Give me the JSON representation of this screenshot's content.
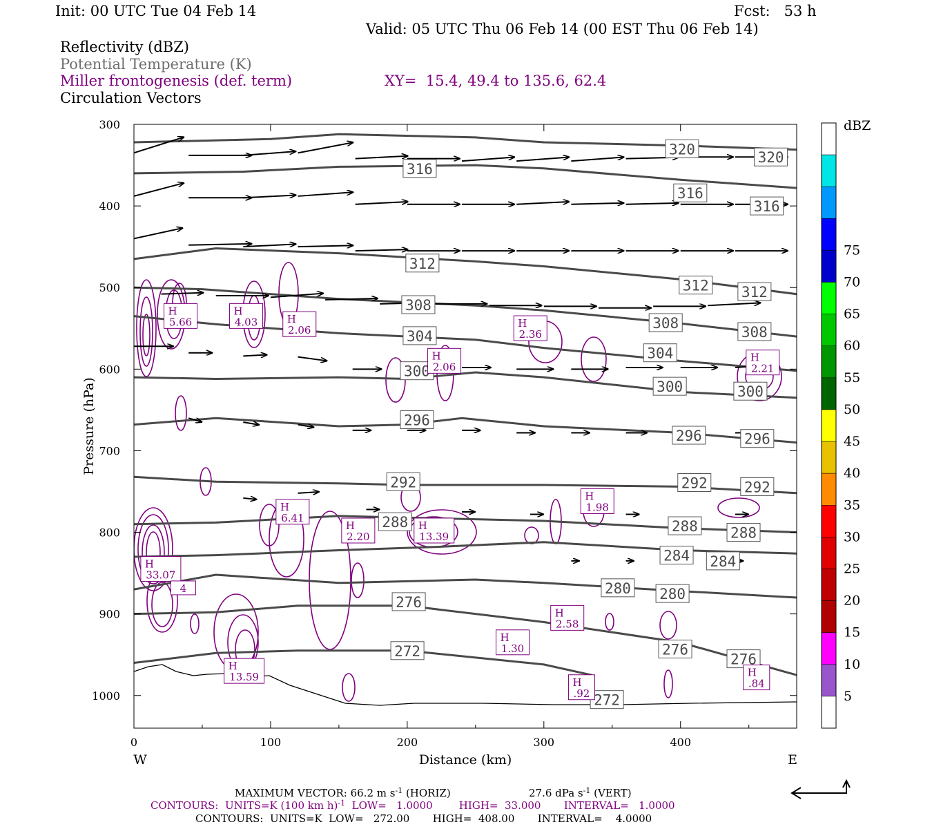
{
  "header": {
    "init": "Init: 00 UTC Tue 04 Feb 14",
    "fcst": "Fcst:   53 h",
    "valid": "Valid: 05 UTC Thu 06 Feb 14 (00 EST Thu 06 Feb 14)",
    "field1": "Reflectivity (dBZ)",
    "field2": "Potential Temperature (K)",
    "field3": "Miller frontogenesis (def. term)",
    "xy": "XY=  15.4, 49.4 to 135.6, 62.4",
    "field4": "Circulation Vectors"
  },
  "colors": {
    "theta": "#4a4a4a",
    "frontogenesis": "#800080",
    "vectors": "#000000"
  },
  "chart_data": {
    "type": "contour",
    "xlabel": "Distance (km)",
    "ylabel": "Pressure (hPa)",
    "xlim": [
      0,
      485
    ],
    "ylim": [
      1040,
      300
    ],
    "x_ticks": [
      0,
      100,
      200,
      300,
      400
    ],
    "y_ticks": [
      300,
      400,
      500,
      600,
      700,
      800,
      900,
      1000
    ],
    "west_label": "W",
    "east_label": "E",
    "theta_contours": [
      {
        "label": "320",
        "points": [
          [
            0,
            322
          ],
          [
            100,
            318
          ],
          [
            150,
            312
          ],
          [
            250,
            316
          ],
          [
            300,
            322
          ],
          [
            400,
            326
          ],
          [
            485,
            331
          ]
        ]
      },
      {
        "label": "316",
        "points": [
          [
            0,
            360
          ],
          [
            80,
            358
          ],
          [
            150,
            352
          ],
          [
            250,
            350
          ],
          [
            300,
            354
          ],
          [
            400,
            368
          ],
          [
            485,
            378
          ]
        ]
      },
      {
        "label": "312",
        "points": [
          [
            0,
            465
          ],
          [
            60,
            452
          ],
          [
            150,
            458
          ],
          [
            250,
            468
          ],
          [
            300,
            474
          ],
          [
            400,
            490
          ],
          [
            485,
            508
          ]
        ]
      },
      {
        "label": "308",
        "points": [
          [
            0,
            500
          ],
          [
            50,
            502
          ],
          [
            150,
            514
          ],
          [
            250,
            522
          ],
          [
            300,
            528
          ],
          [
            400,
            544
          ],
          [
            485,
            560
          ]
        ]
      },
      {
        "label": "304",
        "points": [
          [
            0,
            535
          ],
          [
            60,
            545
          ],
          [
            150,
            556
          ],
          [
            250,
            564
          ],
          [
            300,
            574
          ],
          [
            400,
            590
          ],
          [
            485,
            602
          ]
        ]
      },
      {
        "label": "300",
        "points": [
          [
            0,
            610
          ],
          [
            60,
            612
          ],
          [
            150,
            610
          ],
          [
            200,
            612
          ],
          [
            250,
            604
          ],
          [
            300,
            610
          ],
          [
            400,
            628
          ],
          [
            485,
            635
          ]
        ]
      },
      {
        "label": "296",
        "points": [
          [
            0,
            668
          ],
          [
            60,
            660
          ],
          [
            150,
            670
          ],
          [
            200,
            668
          ],
          [
            240,
            660
          ],
          [
            300,
            670
          ],
          [
            400,
            678
          ],
          [
            485,
            690
          ]
        ]
      },
      {
        "label": "292",
        "points": [
          [
            0,
            732
          ],
          [
            60,
            738
          ],
          [
            150,
            740
          ],
          [
            200,
            742
          ],
          [
            300,
            742
          ],
          [
            400,
            744
          ],
          [
            485,
            752
          ]
        ]
      },
      {
        "label": "288",
        "points": [
          [
            0,
            790
          ],
          [
            60,
            788
          ],
          [
            150,
            780
          ],
          [
            200,
            782
          ],
          [
            300,
            786
          ],
          [
            400,
            795
          ],
          [
            485,
            800
          ]
        ]
      },
      {
        "label": "284",
        "points": [
          [
            0,
            830
          ],
          [
            60,
            828
          ],
          [
            150,
            822
          ],
          [
            220,
            818
          ],
          [
            300,
            812
          ],
          [
            400,
            822
          ],
          [
            485,
            826
          ]
        ]
      },
      {
        "label": "280",
        "points": [
          [
            0,
            870
          ],
          [
            60,
            852
          ],
          [
            150,
            862
          ],
          [
            250,
            858
          ],
          [
            300,
            862
          ],
          [
            400,
            872
          ],
          [
            485,
            880
          ]
        ]
      },
      {
        "label": "276",
        "points": [
          [
            0,
            900
          ],
          [
            60,
            898
          ],
          [
            120,
            890
          ],
          [
            200,
            890
          ],
          [
            300,
            910
          ],
          [
            400,
            935
          ],
          [
            485,
            975
          ]
        ]
      },
      {
        "label": "272",
        "points": [
          [
            0,
            960
          ],
          [
            60,
            948
          ],
          [
            120,
            945
          ],
          [
            200,
            945
          ],
          [
            300,
            962
          ],
          [
            335,
            975
          ]
        ]
      }
    ],
    "theta_labels": [
      {
        "text": "320",
        "x": 390,
        "y": 330
      },
      {
        "text": "320",
        "x": 455,
        "y": 340
      },
      {
        "text": "316",
        "x": 198,
        "y": 354
      },
      {
        "text": "316",
        "x": 396,
        "y": 384
      },
      {
        "text": "316",
        "x": 452,
        "y": 400
      },
      {
        "text": "312",
        "x": 200,
        "y": 470
      },
      {
        "text": "312",
        "x": 400,
        "y": 497
      },
      {
        "text": "312",
        "x": 443,
        "y": 505
      },
      {
        "text": "308",
        "x": 197,
        "y": 521
      },
      {
        "text": "308",
        "x": 378,
        "y": 543
      },
      {
        "text": "308",
        "x": 443,
        "y": 554
      },
      {
        "text": "304",
        "x": 198,
        "y": 559
      },
      {
        "text": "304",
        "x": 374,
        "y": 580
      },
      {
        "text": "300",
        "x": 196,
        "y": 602
      },
      {
        "text": "300",
        "x": 381,
        "y": 621
      },
      {
        "text": "300",
        "x": 440,
        "y": 627
      },
      {
        "text": "296",
        "x": 196,
        "y": 662
      },
      {
        "text": "296",
        "x": 395,
        "y": 681
      },
      {
        "text": "296",
        "x": 445,
        "y": 685
      },
      {
        "text": "292",
        "x": 186,
        "y": 738
      },
      {
        "text": "292",
        "x": 399,
        "y": 739
      },
      {
        "text": "292",
        "x": 445,
        "y": 744
      },
      {
        "text": "288",
        "x": 180,
        "y": 787
      },
      {
        "text": "288",
        "x": 392,
        "y": 792
      },
      {
        "text": "288",
        "x": 435,
        "y": 800
      },
      {
        "text": "284",
        "x": 386,
        "y": 828
      },
      {
        "text": "284",
        "x": 420,
        "y": 835
      },
      {
        "text": "280",
        "x": 343,
        "y": 868
      },
      {
        "text": "280",
        "x": 383,
        "y": 875
      },
      {
        "text": "276",
        "x": 190,
        "y": 885
      },
      {
        "text": "276",
        "x": 385,
        "y": 943
      },
      {
        "text": "276",
        "x": 435,
        "y": 955
      },
      {
        "text": "272",
        "x": 189,
        "y": 945
      },
      {
        "text": "272",
        "x": 335,
        "y": 1005
      }
    ],
    "frontogenesis_maxima": [
      {
        "marker": "H",
        "value": "5.66",
        "x": 22,
        "y": 545
      },
      {
        "marker": "H",
        "value": "4.03",
        "x": 70,
        "y": 545
      },
      {
        "marker": "H",
        "value": "2.06",
        "x": 109,
        "y": 555
      },
      {
        "marker": "H",
        "value": "2.36",
        "x": 278,
        "y": 560
      },
      {
        "marker": "H",
        "value": "2.06",
        "x": 215,
        "y": 600
      },
      {
        "marker": "H",
        "value": "2.21",
        "x": 448,
        "y": 602
      },
      {
        "marker": "H",
        "value": "6.41",
        "x": 104,
        "y": 785
      },
      {
        "marker": "H",
        "value": "2.20",
        "x": 152,
        "y": 808
      },
      {
        "marker": "H",
        "value": "13.39",
        "x": 205,
        "y": 808
      },
      {
        "marker": "H",
        "value": "1.98",
        "x": 327,
        "y": 772
      },
      {
        "marker": "H",
        "value": "33.07",
        "x": 5,
        "y": 855
      },
      {
        "marker": "",
        "value": "4",
        "x": 27,
        "y": 885
      },
      {
        "marker": "H",
        "value": "2.58",
        "x": 305,
        "y": 915
      },
      {
        "marker": "H",
        "value": "1.30",
        "x": 265,
        "y": 945
      },
      {
        "marker": "H",
        "value": "13.59",
        "x": 66,
        "y": 980
      },
      {
        "marker": "H",
        "value": ".92",
        "x": 318,
        "y": 1000
      },
      {
        "marker": "H",
        "value": ".84",
        "x": 446,
        "y": 988
      }
    ],
    "circulation_vectors": [
      {
        "x": 0,
        "y": 335,
        "u": 38,
        "w": -12
      },
      {
        "x": 40,
        "y": 338,
        "u": 48,
        "w": 0
      },
      {
        "x": 80,
        "y": 338,
        "u": 40,
        "w": -3
      },
      {
        "x": 120,
        "y": 335,
        "u": 42,
        "w": -8
      },
      {
        "x": 162,
        "y": 342,
        "u": 40,
        "w": -2
      },
      {
        "x": 200,
        "y": 342,
        "u": 40,
        "w": 0
      },
      {
        "x": 240,
        "y": 345,
        "u": 40,
        "w": -3
      },
      {
        "x": 280,
        "y": 345,
        "u": 40,
        "w": -3
      },
      {
        "x": 320,
        "y": 345,
        "u": 40,
        "w": -3
      },
      {
        "x": 360,
        "y": 342,
        "u": 40,
        "w": -1
      },
      {
        "x": 400,
        "y": 340,
        "u": 40,
        "w": 0
      },
      {
        "x": 440,
        "y": 340,
        "u": 40,
        "w": 0
      },
      {
        "x": 0,
        "y": 388,
        "u": 38,
        "w": -10
      },
      {
        "x": 40,
        "y": 390,
        "u": 48,
        "w": 0
      },
      {
        "x": 80,
        "y": 390,
        "u": 40,
        "w": -2
      },
      {
        "x": 120,
        "y": 388,
        "u": 42,
        "w": -3
      },
      {
        "x": 162,
        "y": 398,
        "u": 40,
        "w": -2
      },
      {
        "x": 200,
        "y": 398,
        "u": 40,
        "w": 0
      },
      {
        "x": 240,
        "y": 398,
        "u": 40,
        "w": 0
      },
      {
        "x": 280,
        "y": 398,
        "u": 40,
        "w": -2
      },
      {
        "x": 320,
        "y": 398,
        "u": 40,
        "w": -1
      },
      {
        "x": 360,
        "y": 398,
        "u": 40,
        "w": -1
      },
      {
        "x": 400,
        "y": 398,
        "u": 40,
        "w": 0
      },
      {
        "x": 440,
        "y": 398,
        "u": 40,
        "w": 0
      },
      {
        "x": 0,
        "y": 440,
        "u": 37,
        "w": -8
      },
      {
        "x": 40,
        "y": 448,
        "u": 48,
        "w": -1
      },
      {
        "x": 80,
        "y": 450,
        "u": 40,
        "w": -2
      },
      {
        "x": 120,
        "y": 450,
        "u": 42,
        "w": -1
      },
      {
        "x": 162,
        "y": 455,
        "u": 40,
        "w": -1
      },
      {
        "x": 200,
        "y": 455,
        "u": 40,
        "w": 0
      },
      {
        "x": 240,
        "y": 455,
        "u": 40,
        "w": 0
      },
      {
        "x": 280,
        "y": 455,
        "u": 40,
        "w": 0
      },
      {
        "x": 320,
        "y": 455,
        "u": 40,
        "w": 0
      },
      {
        "x": 360,
        "y": 455,
        "u": 40,
        "w": 0
      },
      {
        "x": 400,
        "y": 455,
        "u": 40,
        "w": 0
      },
      {
        "x": 440,
        "y": 455,
        "u": 40,
        "w": 0
      },
      {
        "x": 20,
        "y": 508,
        "u": 32,
        "w": -1
      },
      {
        "x": 60,
        "y": 510,
        "u": 40,
        "w": 0
      },
      {
        "x": 100,
        "y": 512,
        "u": 40,
        "w": -3
      },
      {
        "x": 140,
        "y": 515,
        "u": 40,
        "w": -1
      },
      {
        "x": 180,
        "y": 520,
        "u": 40,
        "w": -1
      },
      {
        "x": 220,
        "y": 520,
        "u": 40,
        "w": 0
      },
      {
        "x": 260,
        "y": 522,
        "u": 40,
        "w": 0
      },
      {
        "x": 300,
        "y": 523,
        "u": 40,
        "w": 0
      },
      {
        "x": 340,
        "y": 525,
        "u": 40,
        "w": 0
      },
      {
        "x": 380,
        "y": 523,
        "u": 40,
        "w": 0
      },
      {
        "x": 420,
        "y": 522,
        "u": 40,
        "w": -2
      },
      {
        "x": 0,
        "y": 572,
        "u": 30,
        "w": 0
      },
      {
        "x": 40,
        "y": 580,
        "u": 18,
        "w": 0
      },
      {
        "x": 80,
        "y": 584,
        "u": 18,
        "w": -1
      },
      {
        "x": 120,
        "y": 585,
        "u": 22,
        "w": 3
      },
      {
        "x": 160,
        "y": 600,
        "u": 22,
        "w": 0
      },
      {
        "x": 200,
        "y": 598,
        "u": 22,
        "w": -2
      },
      {
        "x": 240,
        "y": 598,
        "u": 22,
        "w": 0
      },
      {
        "x": 280,
        "y": 600,
        "u": 28,
        "w": 0
      },
      {
        "x": 320,
        "y": 600,
        "u": 28,
        "w": 0
      },
      {
        "x": 360,
        "y": 598,
        "u": 28,
        "w": 0
      },
      {
        "x": 400,
        "y": 598,
        "u": 28,
        "w": 0
      },
      {
        "x": 440,
        "y": 598,
        "u": 28,
        "w": -2
      },
      {
        "x": 40,
        "y": 660,
        "u": 10,
        "w": 3
      },
      {
        "x": 80,
        "y": 665,
        "u": 12,
        "w": 2
      },
      {
        "x": 120,
        "y": 668,
        "u": 12,
        "w": 2
      },
      {
        "x": 160,
        "y": 675,
        "u": 14,
        "w": 0
      },
      {
        "x": 200,
        "y": 675,
        "u": 14,
        "w": 0
      },
      {
        "x": 240,
        "y": 675,
        "u": 14,
        "w": 0
      },
      {
        "x": 280,
        "y": 678,
        "u": 14,
        "w": 0
      },
      {
        "x": 320,
        "y": 678,
        "u": 14,
        "w": 0
      },
      {
        "x": 360,
        "y": 678,
        "u": 16,
        "w": 0
      },
      {
        "x": 400,
        "y": 678,
        "u": 16,
        "w": 0
      },
      {
        "x": 440,
        "y": 678,
        "u": 16,
        "w": 0
      },
      {
        "x": 80,
        "y": 758,
        "u": 10,
        "w": 1
      },
      {
        "x": 120,
        "y": 752,
        "u": 16,
        "w": -1
      },
      {
        "x": 170,
        "y": 772,
        "u": 10,
        "w": 0
      },
      {
        "x": 240,
        "y": 775,
        "u": 10,
        "w": 0
      },
      {
        "x": 290,
        "y": 778,
        "u": 10,
        "w": 0
      },
      {
        "x": 360,
        "y": 778,
        "u": 10,
        "w": 0
      },
      {
        "x": 440,
        "y": 778,
        "u": 10,
        "w": 0
      },
      {
        "x": 320,
        "y": 835,
        "u": 6,
        "w": 0
      },
      {
        "x": 360,
        "y": 835,
        "u": 6,
        "w": 0
      },
      {
        "x": 400,
        "y": 835,
        "u": 6,
        "w": 0
      },
      {
        "x": 440,
        "y": 835,
        "u": 6,
        "w": 0
      }
    ],
    "legend": {
      "unit": "dBZ",
      "levels": [
        5,
        10,
        15,
        20,
        25,
        30,
        35,
        40,
        45,
        50,
        55,
        60,
        65,
        70,
        75
      ],
      "colors": [
        "#ffffff",
        "#00e5e5",
        "#0099ff",
        "#0000ff",
        "#0000cc",
        "#00ff00",
        "#00c800",
        "#009600",
        "#006400",
        "#ffff00",
        "#e8c200",
        "#ff8c00",
        "#ff0000",
        "#e00000",
        "#c00000",
        "#b00000",
        "#ff00ff",
        "#9955cc",
        "#ffffff"
      ]
    }
  },
  "footer": {
    "max_vector_label": "MAXIMUM VECTOR:  66.2 m s",
    "max_vector_sup1": "-1",
    "max_vector_horiz": " (HORIZ)",
    "max_vector_vert": "27.6 dPa s",
    "max_vector_sup2": "-1",
    "max_vector_vert_tail": " (VERT)",
    "contours1_a": "CONTOURS:  UNITS=K (100 km h)",
    "contours1_sup": "-1",
    "contours1_b": "  LOW=   1.0000        HIGH=  33.000       INTERVAL=   1.0000",
    "contours2": "CONTOURS:  UNITS=K  LOW=   272.00       HIGH=  408.00       INTERVAL=    4.0000"
  }
}
